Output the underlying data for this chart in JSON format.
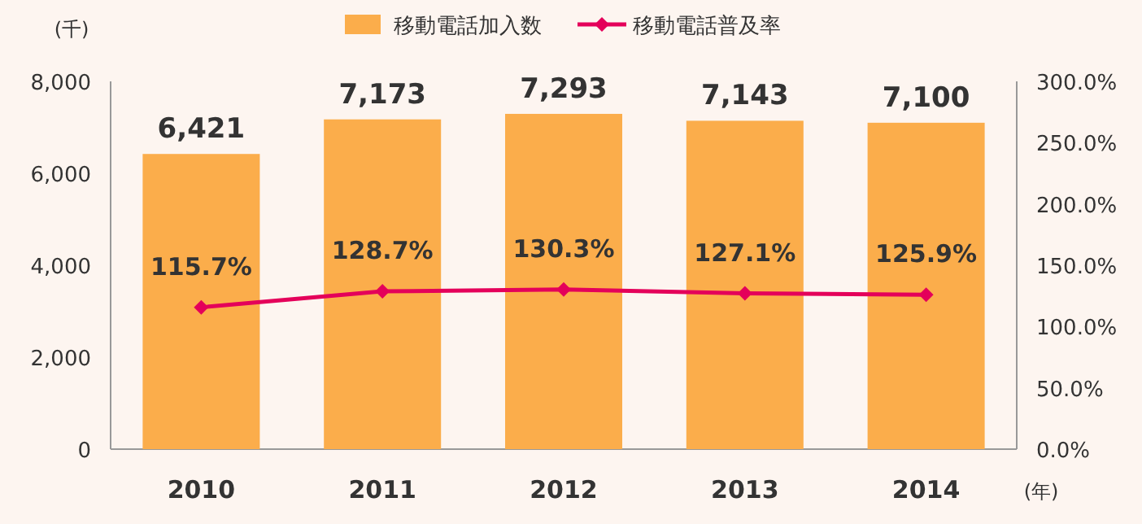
{
  "chart_data": {
    "type": "bar",
    "categories": [
      "2010",
      "2011",
      "2012",
      "2013",
      "2014"
    ],
    "series": [
      {
        "name": "移動電話加入数",
        "color": "#fbad4b",
        "values": [
          6421,
          7173,
          7293,
          7143,
          7100
        ],
        "value_labels": [
          "6,421",
          "7,173",
          "7,293",
          "7,143",
          "7,100"
        ]
      },
      {
        "name": "移動電話普及率",
        "type": "line",
        "axis": "y2",
        "color": "#e4005a",
        "marker": "diamond",
        "values": [
          115.7,
          128.7,
          130.3,
          127.1,
          125.9
        ],
        "value_labels": [
          "115.7%",
          "128.7%",
          "130.3%",
          "127.1%",
          "125.9%"
        ]
      }
    ],
    "ylabel": "(千)",
    "xlabel": "(年)",
    "ylim": [
      0,
      8000
    ],
    "yticks": [
      {
        "value": 0,
        "label": "0"
      },
      {
        "value": 2000,
        "label": "2,000"
      },
      {
        "value": 4000,
        "label": "4,000"
      },
      {
        "value": 6000,
        "label": "6,000"
      },
      {
        "value": 8000,
        "label": "8,000"
      }
    ],
    "y2lim": [
      0,
      300
    ],
    "y2ticks": [
      {
        "value": 0,
        "label": "0.0%"
      },
      {
        "value": 50,
        "label": "50.0%"
      },
      {
        "value": 100,
        "label": "100.0%"
      },
      {
        "value": 150,
        "label": "150.0%"
      },
      {
        "value": 200,
        "label": "200.0%"
      },
      {
        "value": 250,
        "label": "250.0%"
      },
      {
        "value": 300,
        "label": "300.0%"
      }
    ],
    "legend": "top"
  }
}
